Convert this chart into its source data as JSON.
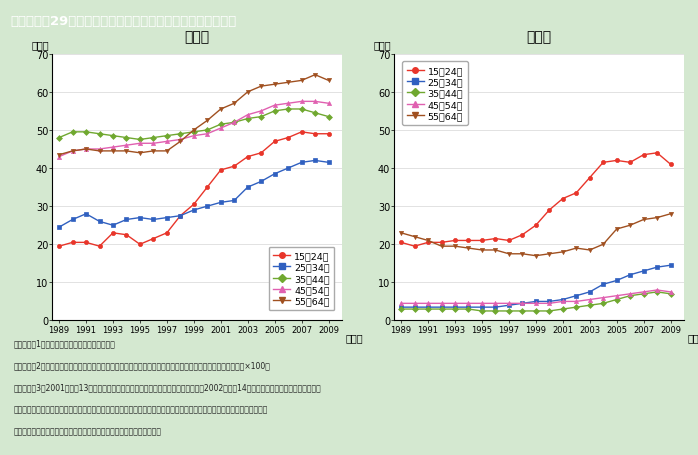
{
  "title": "第１－特－29図　男女別・年齢階級別非正規雇用比率の推移",
  "title_bg": "#9B8B6E",
  "title_text_color": "#FFFFFF",
  "bg_color": "#D4E8D0",
  "plot_bg": "#FFFFFF",
  "subtitle_female": "女　性",
  "subtitle_male": "男　性",
  "ylabel": "（％）",
  "xlabel": "（年）",
  "years": [
    1989,
    1990,
    1991,
    1992,
    1993,
    1994,
    1995,
    1996,
    1997,
    1998,
    1999,
    2000,
    2001,
    2002,
    2003,
    2004,
    2005,
    2006,
    2007,
    2008,
    2009
  ],
  "female": {
    "15_24": [
      19.5,
      20.5,
      20.5,
      19.5,
      23.0,
      22.5,
      20.0,
      21.5,
      23.0,
      27.5,
      30.5,
      35.0,
      39.5,
      40.5,
      43.0,
      44.0,
      47.0,
      48.0,
      49.5,
      49.0,
      49.0
    ],
    "25_34": [
      24.5,
      26.5,
      28.0,
      26.0,
      25.0,
      26.5,
      27.0,
      26.5,
      27.0,
      27.5,
      29.0,
      30.0,
      31.0,
      31.5,
      35.0,
      36.5,
      38.5,
      40.0,
      41.5,
      42.0,
      41.5
    ],
    "35_44": [
      48.0,
      49.5,
      49.5,
      49.0,
      48.5,
      48.0,
      47.5,
      48.0,
      48.5,
      49.0,
      49.5,
      50.0,
      51.5,
      52.0,
      53.0,
      53.5,
      55.0,
      55.5,
      55.5,
      54.5,
      53.5
    ],
    "45_54": [
      43.0,
      44.5,
      45.0,
      45.0,
      45.5,
      46.0,
      46.5,
      46.5,
      47.0,
      47.5,
      48.5,
      49.0,
      50.5,
      52.0,
      54.0,
      55.0,
      56.5,
      57.0,
      57.5,
      57.5,
      57.0
    ],
    "55_64": [
      43.5,
      44.5,
      45.0,
      44.5,
      44.5,
      44.5,
      44.0,
      44.5,
      44.5,
      47.0,
      50.0,
      52.5,
      55.5,
      57.0,
      60.0,
      61.5,
      62.0,
      62.5,
      63.0,
      64.5,
      63.0
    ]
  },
  "male": {
    "15_24": [
      20.5,
      19.5,
      20.5,
      20.5,
      21.0,
      21.0,
      21.0,
      21.5,
      21.0,
      22.5,
      25.0,
      29.0,
      32.0,
      33.5,
      37.5,
      41.5,
      42.0,
      41.5,
      43.5,
      44.0,
      41.0
    ],
    "25_34": [
      3.5,
      3.5,
      3.5,
      3.5,
      3.5,
      3.5,
      3.5,
      3.5,
      4.0,
      4.5,
      5.0,
      5.0,
      5.5,
      6.5,
      7.5,
      9.5,
      10.5,
      12.0,
      13.0,
      14.0,
      14.5
    ],
    "35_44": [
      3.0,
      3.0,
      3.0,
      3.0,
      3.0,
      3.0,
      2.5,
      2.5,
      2.5,
      2.5,
      2.5,
      2.5,
      3.0,
      3.5,
      4.0,
      4.5,
      5.5,
      6.5,
      7.0,
      7.5,
      7.0
    ],
    "45_54": [
      4.5,
      4.5,
      4.5,
      4.5,
      4.5,
      4.5,
      4.5,
      4.5,
      4.5,
      4.5,
      4.5,
      4.5,
      5.0,
      5.0,
      5.5,
      6.0,
      6.5,
      7.0,
      7.5,
      8.0,
      7.5
    ],
    "55_64": [
      23.0,
      22.0,
      21.0,
      19.5,
      19.5,
      19.0,
      18.5,
      18.5,
      17.5,
      17.5,
      17.0,
      17.5,
      18.0,
      19.0,
      18.5,
      20.0,
      24.0,
      25.0,
      26.5,
      27.0,
      28.0
    ]
  },
  "colors": {
    "15_24": "#E8352A",
    "25_34": "#3060C0",
    "35_44": "#70A830",
    "45_54": "#E060B0",
    "55_64": "#A05020"
  },
  "legend_labels": [
    "15～24歳",
    "25～34歳",
    "35～44歳",
    "45～54歳",
    "55～64歳"
  ],
  "markers": {
    "15_24": "o",
    "25_34": "s",
    "35_44": "D",
    "45_54": "^",
    "55_64": "v"
  },
  "note_lines": [
    "（備考）　1．総務省「労働力調査」より作成。",
    "　　　　　2．非正規雇用比率＝（非正規の職員・従業員）／（正規の職員・従業員＋非正規の職員・従業員）×100。",
    "　　　　　3．2001（平成13）年以前は「労働力調査特別調査」の各年２月の数値，2002（平成14）年以降は「労働力調査詳細集計」",
    "　　　　　　の各年平均の数値により作成。「労働力調査特別調査」と「労働力調査詳細集計」とでは，調査方法，調査月",
    "　　　　　　などが相違することから，時系列比較には注意を要する。"
  ]
}
